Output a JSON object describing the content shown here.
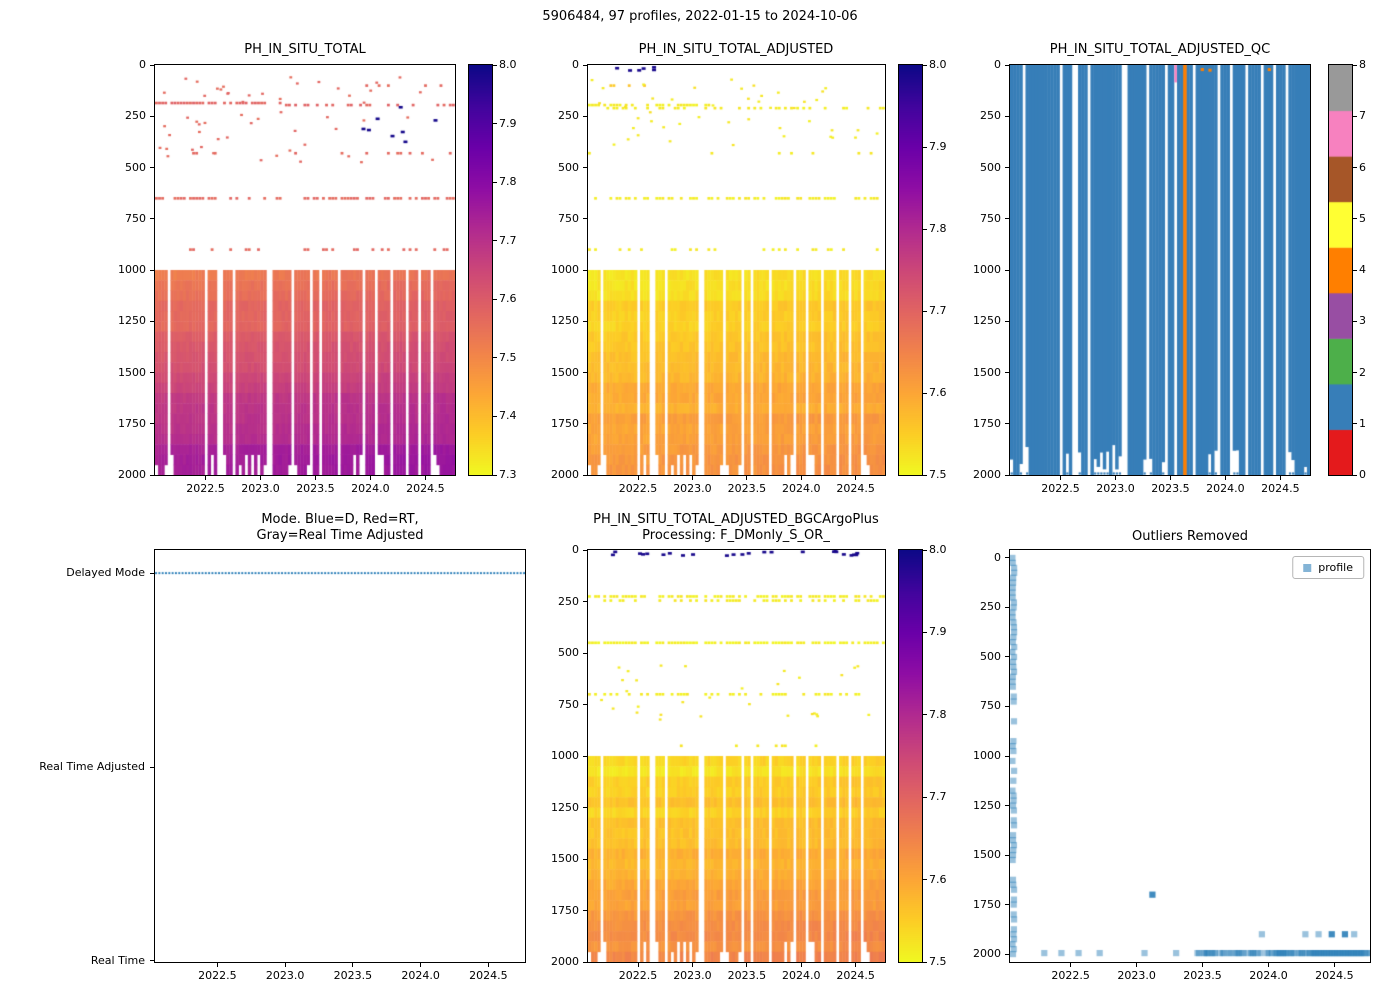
{
  "figure": {
    "suptitle": "5906484, 97 profiles, 2022-01-15 to 2024-10-06",
    "background": "#ffffff",
    "axis_color": "#000000",
    "n_profiles": 97,
    "time_range": [
      2022.04,
      2024.77
    ],
    "depth_range": [
      0,
      2000
    ],
    "x_ticks": {
      "values": [
        2022.5,
        2023.0,
        2023.5,
        2024.0,
        2024.5
      ],
      "labels": [
        "2022.5",
        "2023.0",
        "2023.5",
        "2024.0",
        "2024.5"
      ]
    },
    "depth_ticks": {
      "values": [
        0,
        250,
        500,
        750,
        1000,
        1250,
        1500,
        1750,
        2000
      ],
      "labels": [
        "0",
        "250",
        "500",
        "750",
        "1000",
        "1250",
        "1500",
        "1750",
        "2000"
      ]
    },
    "gap_times": [
      2022.16,
      2022.5,
      2022.63,
      2022.76,
      2023.08,
      2023.3,
      2023.46,
      2023.54,
      2023.72,
      2023.95,
      2024.06,
      2024.2,
      2024.34,
      2024.45,
      2024.56
    ],
    "colormaps": {
      "plasma": {
        "positions": [
          0,
          0.1,
          0.2,
          0.3,
          0.4,
          0.5,
          0.6,
          0.7,
          0.8,
          0.9,
          1.0
        ],
        "colors": [
          "#0d0887",
          "#41049d",
          "#6a00a8",
          "#8f0da4",
          "#b12a90",
          "#cc4778",
          "#e16462",
          "#f1834b",
          "#fca636",
          "#fcce25",
          "#f0f921"
        ]
      }
    }
  },
  "chart_data": [
    {
      "id": "ph_raw",
      "type": "heatmap",
      "title": "PH_IN_SITU_TOTAL",
      "x_range": [
        2022.04,
        2024.77
      ],
      "y_range": [
        0,
        2000
      ],
      "y_inverted": true,
      "colormap": "plasma_r",
      "vmin": 7.3,
      "vmax": 8.0,
      "colorbar_ticks": {
        "values": [
          7.3,
          7.4,
          7.5,
          7.6,
          7.7,
          7.8,
          7.9,
          8.0
        ],
        "labels": [
          "7.3",
          "7.4",
          "7.5",
          "7.6",
          "7.7",
          "7.8",
          "7.9",
          "8.0"
        ]
      },
      "deep_band": {
        "depth_top": 1000,
        "depth_bottom": 2000,
        "value_at_top": 7.52,
        "value_at_bottom": 7.76,
        "time_trend": 0.03
      },
      "surface_rows": [
        {
          "depth": 185,
          "value": 7.58,
          "density": 0.85,
          "span": [
            2022.04,
            2023.2
          ]
        },
        {
          "depth": 195,
          "value": 7.58,
          "density": 0.4,
          "span": [
            2023.2,
            2024.77
          ]
        },
        {
          "depth": 650,
          "value": 7.57,
          "density": 0.7,
          "span": [
            2022.04,
            2024.77
          ]
        },
        {
          "depth": 900,
          "value": 7.57,
          "density": 0.3,
          "span": [
            2022.04,
            2024.77
          ]
        },
        {
          "depth": 430,
          "value": 7.57,
          "density": 0.12,
          "span": [
            2022.04,
            2024.77
          ]
        },
        {
          "depth": 100,
          "value": 7.57,
          "density": 0.22,
          "span": [
            2023.7,
            2024.77
          ]
        }
      ],
      "scatter_marks": {
        "count": 55,
        "depth_min": 50,
        "depth_max": 470,
        "value": 7.57
      },
      "high_marks": {
        "count": 8,
        "depth_min": 60,
        "depth_max": 430,
        "value": 7.99,
        "span": [
          2023.9,
          2024.7
        ]
      }
    },
    {
      "id": "ph_adjusted",
      "type": "heatmap",
      "title": "PH_IN_SITU_TOTAL_ADJUSTED",
      "x_range": [
        2022.04,
        2024.77
      ],
      "y_range": [
        0,
        2000
      ],
      "y_inverted": true,
      "colormap": "plasma_r",
      "vmin": 7.5,
      "vmax": 8.0,
      "colorbar_ticks": {
        "values": [
          7.5,
          7.6,
          7.7,
          7.8,
          7.9,
          8.0
        ],
        "labels": [
          "7.5",
          "7.6",
          "7.7",
          "7.8",
          "7.9",
          "8.0"
        ]
      },
      "deep_band": {
        "depth_top": 1000,
        "depth_bottom": 2000,
        "value_at_top": 7.525,
        "value_at_bottom": 7.625,
        "time_trend": 0.015
      },
      "surface_rows": [
        {
          "depth": 195,
          "value": 7.515,
          "density": 0.85,
          "span": [
            2022.04,
            2023.2
          ]
        },
        {
          "depth": 210,
          "value": 7.515,
          "density": 0.4,
          "span": [
            2022.04,
            2024.77
          ]
        },
        {
          "depth": 650,
          "value": 7.515,
          "density": 0.7,
          "span": [
            2022.04,
            2024.77
          ]
        },
        {
          "depth": 900,
          "value": 7.515,
          "density": 0.28,
          "span": [
            2022.04,
            2024.77
          ]
        },
        {
          "depth": 100,
          "value": 7.56,
          "density": 0.25,
          "span": [
            2022.2,
            2022.6
          ]
        },
        {
          "depth": 430,
          "value": 7.52,
          "density": 0.1,
          "span": [
            2022.04,
            2024.77
          ]
        }
      ],
      "scatter_marks": {
        "count": 45,
        "depth_min": 60,
        "depth_max": 420,
        "value": 7.52
      },
      "high_marks": {
        "count": 6,
        "depth_min": 0,
        "depth_max": 25,
        "value": 7.99,
        "span": [
          2022.2,
          2022.7
        ]
      }
    },
    {
      "id": "ph_adjusted_qc",
      "type": "heatmap-discrete",
      "title": "PH_IN_SITU_TOTAL_ADJUSTED_QC",
      "x_range": [
        2022.04,
        2024.77
      ],
      "y_range": [
        0,
        2000
      ],
      "y_inverted": true,
      "flag_colors": [
        "#e41a1c",
        "#377eb8",
        "#4daf4a",
        "#984ea3",
        "#ff7f00",
        "#ffff33",
        "#a65628",
        "#f781bf",
        "#999999"
      ],
      "colorbar_ticks": {
        "values": [
          0,
          1,
          2,
          3,
          4,
          5,
          6,
          7,
          8
        ],
        "labels": [
          "0",
          "1",
          "2",
          "3",
          "4",
          "5",
          "6",
          "7",
          "8"
        ]
      },
      "dominant_flag": 1,
      "flag4_column_time": 2023.62,
      "flag7_mark": {
        "time": 2023.555,
        "depth_max": 85
      },
      "flag4_marks": [
        {
          "time": 2023.79,
          "depth": 15
        },
        {
          "time": 2023.86,
          "depth": 18
        },
        {
          "time": 2024.4,
          "depth": 15
        }
      ]
    },
    {
      "id": "mode",
      "type": "categorical-line",
      "title_lines": [
        "Mode. Blue=D, Red=RT,",
        "Gray=Real Time Adjusted"
      ],
      "x_range": [
        2022.04,
        2024.77
      ],
      "categories": [
        "Delayed Mode",
        "Real Time Adjusted",
        "Real Time"
      ],
      "series": {
        "name": "mode",
        "value": "Delayed Mode",
        "style": "dotted",
        "color": "#1f77b4"
      }
    },
    {
      "id": "ph_bgcargoplus",
      "type": "heatmap",
      "title_lines": [
        "PH_IN_SITU_TOTAL_ADJUSTED_BGCArgoPlus",
        "Processing: F_DMonly_S_OR_"
      ],
      "x_range": [
        2022.04,
        2024.77
      ],
      "y_range": [
        0,
        2000
      ],
      "y_inverted": true,
      "colormap": "plasma_r",
      "vmin": 7.5,
      "vmax": 8.0,
      "colorbar_ticks": {
        "values": [
          7.5,
          7.6,
          7.7,
          7.8,
          7.9,
          8.0
        ],
        "labels": [
          "7.5",
          "7.6",
          "7.7",
          "7.8",
          "7.9",
          "8.0"
        ]
      },
      "deep_band": {
        "depth_top": 1000,
        "depth_bottom": 2000,
        "value_at_top": 7.525,
        "value_at_bottom": 7.64,
        "time_trend": 0.015
      },
      "surface_rows": [
        {
          "depth": 225,
          "value": 7.515,
          "density": 0.8,
          "span": [
            2022.04,
            2024.77
          ]
        },
        {
          "depth": 245,
          "value": 7.515,
          "density": 0.4,
          "span": [
            2022.04,
            2024.77
          ]
        },
        {
          "depth": 450,
          "value": 7.51,
          "density": 0.92,
          "span": [
            2022.04,
            2024.77
          ]
        },
        {
          "depth": 700,
          "value": 7.515,
          "density": 0.55,
          "span": [
            2022.04,
            2024.77
          ]
        },
        {
          "depth": 950,
          "value": 7.52,
          "density": 0.22,
          "span": [
            2022.8,
            2024.5
          ]
        }
      ],
      "scatter_marks": {
        "count": 30,
        "depth_min": 550,
        "depth_max": 820,
        "value": 7.52
      },
      "high_marks": {
        "count": 24,
        "depth_min": 0,
        "depth_max": 22,
        "value": 7.99,
        "span": [
          2022.25,
          2024.6
        ]
      }
    },
    {
      "id": "outliers",
      "type": "scatter",
      "title": "Outliers Removed",
      "x_range": [
        2022.04,
        2024.77
      ],
      "y_range": [
        0,
        2000
      ],
      "y_pad": 40,
      "y_inverted": true,
      "legend": {
        "label": "profile",
        "marker": "square"
      },
      "marker": {
        "shape": "square",
        "color": "#1f77b4",
        "alpha_light": 0.45,
        "alpha_dark": 0.85,
        "size": 6.2
      },
      "vertical_strip": {
        "time": 2022.065,
        "depth_min": 0,
        "depth_max": 2000,
        "step": 25,
        "sparse_below": 650,
        "sparse_keep": 0.5
      },
      "bottom_line": {
        "depth": 1995,
        "time_start": 2023.45,
        "time_end": 2024.77,
        "step": 0.012,
        "dense_after": 2024.3,
        "keep_sparse": 0.55,
        "keep_dense": 0.97
      },
      "points": [
        [
          2022.3,
          1995
        ],
        [
          2022.43,
          1995
        ],
        [
          2022.56,
          1995
        ],
        [
          2022.72,
          1995
        ],
        [
          2023.06,
          1995
        ],
        [
          2023.3,
          1995
        ],
        [
          2023.95,
          1900
        ],
        [
          2024.28,
          1900
        ],
        [
          2024.38,
          1900
        ],
        [
          2024.65,
          1900
        ]
      ],
      "dark_points": [
        [
          2023.12,
          1700
        ],
        [
          2024.48,
          1900
        ],
        [
          2024.58,
          1900
        ]
      ]
    }
  ]
}
